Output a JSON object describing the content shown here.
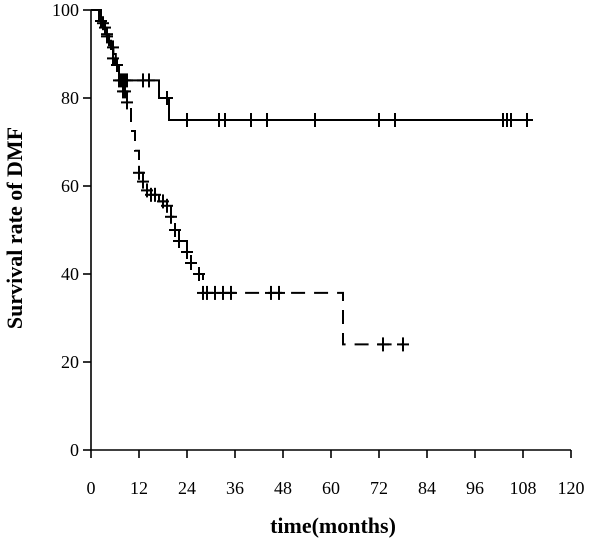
{
  "chart_data": {
    "type": "line",
    "title": "",
    "xlabel": "time(months)",
    "ylabel": "Survival rate of DMF",
    "xlim": [
      0,
      120
    ],
    "ylim": [
      0,
      100
    ],
    "xticks": [
      0,
      12,
      24,
      36,
      48,
      60,
      72,
      84,
      96,
      108,
      120
    ],
    "yticks": [
      0,
      20,
      40,
      60,
      80,
      100
    ],
    "grid": false,
    "legend": "none",
    "series": [
      {
        "style": "solid",
        "x": [
          0,
          2,
          3,
          3.8,
          4.5,
          5,
          5.6,
          6.2,
          7,
          15.5,
          17,
          19.5,
          110
        ],
        "y": [
          100,
          97.5,
          96,
          94.5,
          93,
          91.5,
          90,
          87.5,
          84,
          84,
          80,
          75,
          75
        ],
        "censored_x": [
          2.5,
          3.5,
          4,
          5.5,
          6.5,
          7.5,
          8,
          8.5,
          9,
          13,
          14.5,
          19,
          24,
          32,
          33.5,
          40,
          44,
          56,
          72,
          76,
          103,
          104,
          105,
          109
        ]
      },
      {
        "style": "dashed",
        "x": [
          0,
          2.5,
          3.5,
          4.5,
          5,
          5.5,
          6,
          6.5,
          7,
          8,
          9,
          10,
          11,
          12,
          13,
          14,
          15,
          17,
          19,
          20,
          21,
          22,
          24,
          25,
          27,
          28,
          62,
          63,
          78
        ],
        "y": [
          100,
          97,
          94,
          92,
          90.5,
          89,
          87.5,
          86,
          84,
          81.5,
          79,
          72.5,
          68,
          63,
          61,
          59,
          58,
          56.5,
          55.5,
          53,
          50,
          47.5,
          45,
          42.5,
          40,
          35.7,
          35.7,
          24,
          24
        ],
        "censored_x": [
          3,
          4,
          5.5,
          7,
          8,
          8.5,
          9,
          12,
          13,
          14,
          15,
          16,
          18,
          19,
          20,
          21,
          22,
          24,
          25,
          27,
          28,
          29,
          31,
          33,
          35,
          45,
          47,
          73,
          78
        ]
      }
    ]
  }
}
